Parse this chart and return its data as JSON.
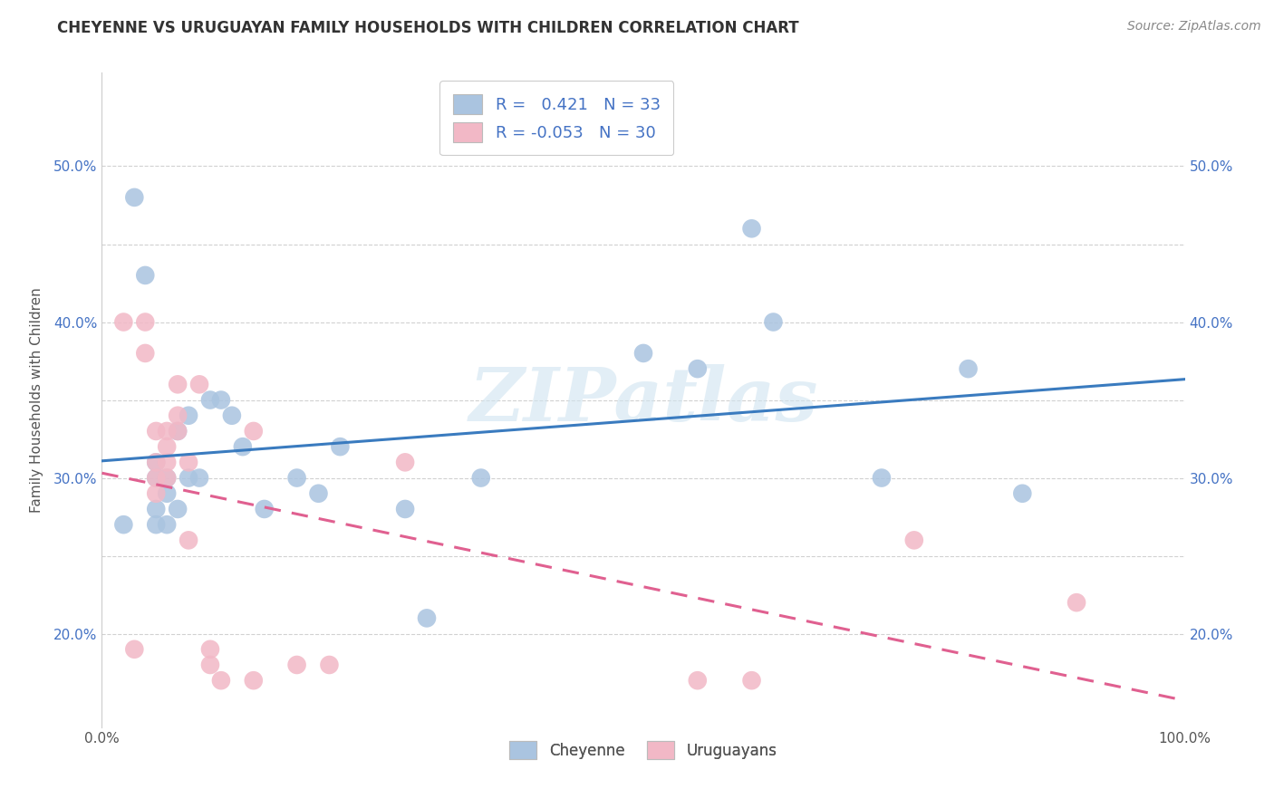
{
  "title": "CHEYENNE VS URUGUAYAN FAMILY HOUSEHOLDS WITH CHILDREN CORRELATION CHART",
  "source": "Source: ZipAtlas.com",
  "ylabel": "Family Households with Children",
  "xlim": [
    0.0,
    1.0
  ],
  "ylim": [
    0.14,
    0.56
  ],
  "x_ticks": [
    0.0,
    1.0
  ],
  "x_tick_labels": [
    "0.0%",
    "100.0%"
  ],
  "y_ticks": [
    0.2,
    0.25,
    0.3,
    0.35,
    0.4,
    0.45,
    0.5
  ],
  "y_tick_labels": [
    "20.0%",
    "",
    "30.0%",
    "",
    "40.0%",
    "",
    "50.0%"
  ],
  "cheyenne_color": "#aac4e0",
  "uruguayan_color": "#f2b8c6",
  "cheyenne_line_color": "#3a7bbf",
  "uruguayan_line_color": "#e06090",
  "R_cheyenne": 0.421,
  "N_cheyenne": 33,
  "R_uruguayan": -0.053,
  "N_uruguayan": 30,
  "legend_label_cheyenne": "Cheyenne",
  "legend_label_uruguayan": "Uruguayans",
  "watermark": "ZIPatlas",
  "cheyenne_x": [
    0.02,
    0.03,
    0.04,
    0.05,
    0.05,
    0.05,
    0.05,
    0.06,
    0.06,
    0.06,
    0.07,
    0.07,
    0.08,
    0.08,
    0.09,
    0.1,
    0.11,
    0.12,
    0.13,
    0.15,
    0.18,
    0.2,
    0.22,
    0.28,
    0.3,
    0.35,
    0.5,
    0.55,
    0.6,
    0.62,
    0.72,
    0.8,
    0.85
  ],
  "cheyenne_y": [
    0.27,
    0.48,
    0.43,
    0.31,
    0.3,
    0.28,
    0.27,
    0.3,
    0.29,
    0.27,
    0.33,
    0.28,
    0.34,
    0.3,
    0.3,
    0.35,
    0.35,
    0.34,
    0.32,
    0.28,
    0.3,
    0.29,
    0.32,
    0.28,
    0.21,
    0.3,
    0.38,
    0.37,
    0.46,
    0.4,
    0.3,
    0.37,
    0.29
  ],
  "uruguayan_x": [
    0.02,
    0.03,
    0.04,
    0.04,
    0.05,
    0.05,
    0.05,
    0.05,
    0.06,
    0.06,
    0.06,
    0.06,
    0.07,
    0.07,
    0.07,
    0.08,
    0.08,
    0.09,
    0.1,
    0.1,
    0.11,
    0.14,
    0.14,
    0.18,
    0.21,
    0.28,
    0.55,
    0.6,
    0.75,
    0.9
  ],
  "uruguayan_y": [
    0.4,
    0.19,
    0.4,
    0.38,
    0.33,
    0.31,
    0.3,
    0.29,
    0.33,
    0.32,
    0.31,
    0.3,
    0.36,
    0.34,
    0.33,
    0.31,
    0.26,
    0.36,
    0.19,
    0.18,
    0.17,
    0.17,
    0.33,
    0.18,
    0.18,
    0.31,
    0.17,
    0.17,
    0.26,
    0.22
  ]
}
